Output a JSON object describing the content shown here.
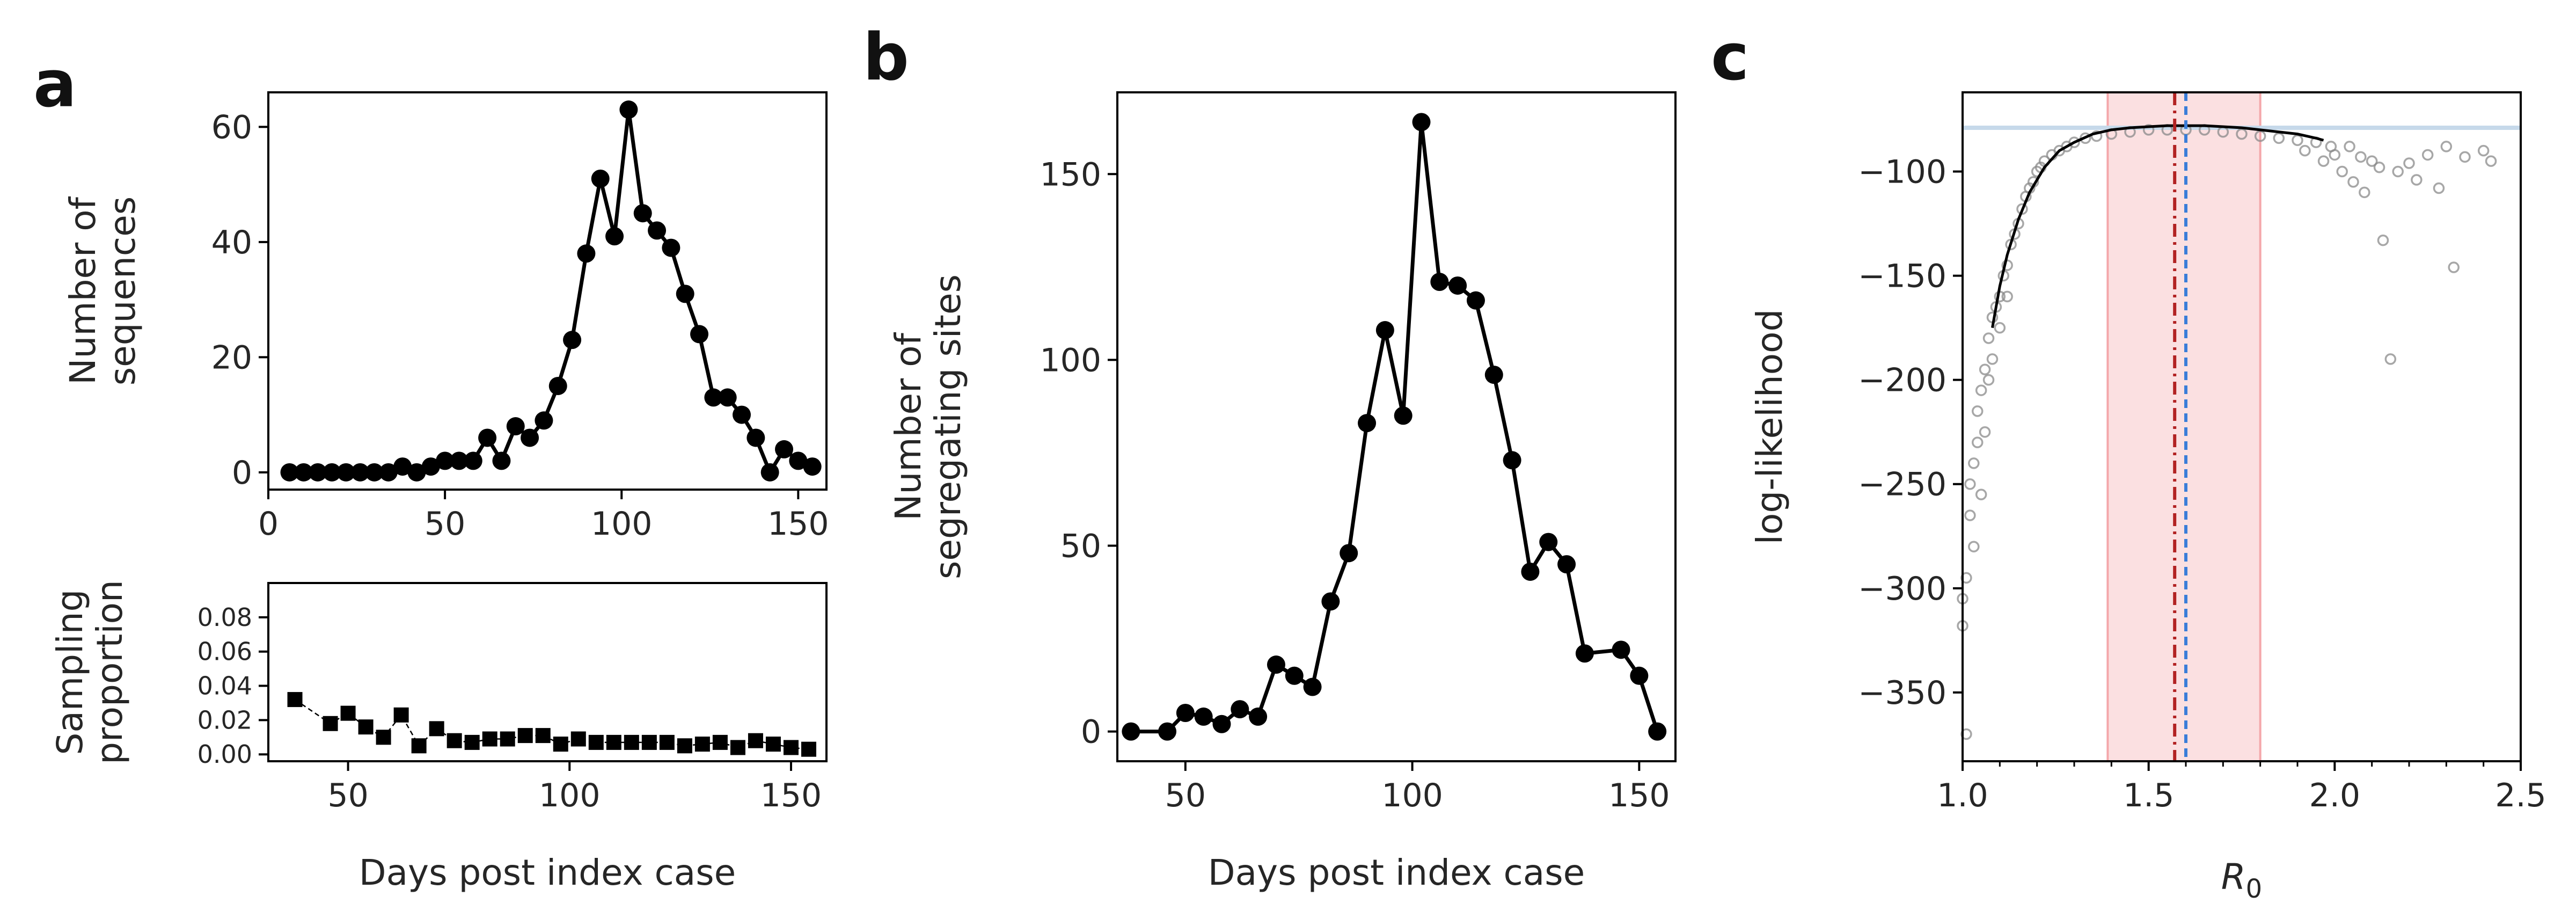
{
  "chart_data": [
    {
      "panel": "a",
      "type": "line",
      "ylabel_lines": [
        "Number of",
        "sequences"
      ],
      "xlabel": "",
      "xlim": [
        0,
        158
      ],
      "ylim": [
        -3,
        66
      ],
      "xticks": [
        0,
        50,
        100,
        150
      ],
      "yticks": [
        0,
        20,
        40,
        60
      ],
      "x": [
        6,
        10,
        14,
        18,
        22,
        26,
        30,
        34,
        38,
        42,
        46,
        50,
        54,
        58,
        62,
        66,
        70,
        74,
        78,
        82,
        86,
        90,
        94,
        98,
        102,
        106,
        110,
        114,
        118,
        122,
        126,
        130,
        134,
        138,
        142,
        146,
        150,
        154
      ],
      "y": [
        0,
        0,
        0,
        0,
        0,
        0,
        0,
        0,
        1,
        0,
        1,
        2,
        2,
        2,
        6,
        2,
        8,
        6,
        9,
        15,
        23,
        38,
        51,
        41,
        63,
        45,
        42,
        39,
        31,
        24,
        13,
        13,
        10,
        6,
        0,
        4,
        2,
        1
      ]
    },
    {
      "panel": "a-lower",
      "type": "line",
      "ylabel_lines": [
        "Sampling",
        "proportion"
      ],
      "xlabel": "Days post index case",
      "xlim": [
        32,
        158
      ],
      "ylim": [
        -0.004,
        0.1
      ],
      "xticks": [
        50,
        100,
        150
      ],
      "yticks": [
        0.0,
        0.02,
        0.04,
        0.06,
        0.08
      ],
      "ytick_labels": [
        "0.00",
        "0.02",
        "0.04",
        "0.06",
        "0.08"
      ],
      "x": [
        38,
        46,
        50,
        54,
        58,
        62,
        66,
        70,
        74,
        78,
        82,
        86,
        90,
        94,
        98,
        102,
        106,
        110,
        114,
        118,
        122,
        126,
        130,
        134,
        138,
        142,
        146,
        150,
        154
      ],
      "y": [
        0.032,
        0.018,
        0.024,
        0.016,
        0.01,
        0.023,
        0.005,
        0.015,
        0.008,
        0.007,
        0.009,
        0.009,
        0.011,
        0.011,
        0.006,
        0.009,
        0.007,
        0.007,
        0.007,
        0.007,
        0.007,
        0.005,
        0.006,
        0.007,
        0.004,
        0.008,
        0.006,
        0.004,
        0.003
      ]
    },
    {
      "panel": "b",
      "type": "line",
      "ylabel_lines": [
        "Number of",
        "segregating sites"
      ],
      "xlabel": "Days post index case",
      "xlim": [
        35,
        158
      ],
      "ylim": [
        -8,
        172
      ],
      "xticks": [
        50,
        100,
        150
      ],
      "yticks": [
        0,
        50,
        100,
        150
      ],
      "x": [
        38,
        46,
        50,
        54,
        58,
        62,
        66,
        70,
        74,
        78,
        82,
        86,
        90,
        94,
        98,
        102,
        106,
        110,
        114,
        118,
        122,
        126,
        130,
        134,
        138,
        146,
        150,
        154
      ],
      "y": [
        0,
        0,
        5,
        4,
        2,
        6,
        4,
        18,
        15,
        12,
        35,
        48,
        83,
        108,
        85,
        164,
        121,
        120,
        116,
        96,
        73,
        43,
        51,
        45,
        21,
        22,
        15,
        0
      ]
    },
    {
      "panel": "c",
      "type": "scatter",
      "ylabel": "log-likelihood",
      "xlabel": "R",
      "xlabel_sub": "0",
      "xlim": [
        1.0,
        2.5
      ],
      "ylim": [
        -383,
        -62
      ],
      "xticks": [
        1.0,
        1.5,
        2.0,
        2.5
      ],
      "xtick_labels": [
        "1.0",
        "1.5",
        "2.0",
        "2.5"
      ],
      "yticks": [
        -350,
        -300,
        -250,
        -200,
        -150,
        -100
      ],
      "ytick_labels": [
        "−350",
        "−300",
        "−250",
        "−200",
        "−150",
        "−100"
      ],
      "max_loglik": -79,
      "ci_band": [
        1.39,
        1.8
      ],
      "mle_estimate": 1.57,
      "true_value": 1.6,
      "smooth_curve": {
        "x": [
          1.08,
          1.1,
          1.12,
          1.15,
          1.18,
          1.22,
          1.26,
          1.3,
          1.35,
          1.4,
          1.45,
          1.5,
          1.55,
          1.6,
          1.65,
          1.7,
          1.75,
          1.8,
          1.85,
          1.9,
          1.95,
          1.97
        ],
        "y": [
          -175,
          -155,
          -140,
          -123,
          -110,
          -98,
          -90,
          -86,
          -82,
          -80,
          -79,
          -78.5,
          -78,
          -78,
          -78,
          -78.5,
          -79,
          -80,
          -81,
          -82,
          -84,
          -85
        ]
      },
      "points": [
        [
          1.0,
          -318
        ],
        [
          1.0,
          -305
        ],
        [
          1.01,
          -295
        ],
        [
          1.01,
          -370
        ],
        [
          1.02,
          -265
        ],
        [
          1.02,
          -250
        ],
        [
          1.03,
          -240
        ],
        [
          1.03,
          -280
        ],
        [
          1.04,
          -230
        ],
        [
          1.04,
          -215
        ],
        [
          1.05,
          -205
        ],
        [
          1.05,
          -255
        ],
        [
          1.06,
          -195
        ],
        [
          1.06,
          -225
        ],
        [
          1.07,
          -180
        ],
        [
          1.07,
          -200
        ],
        [
          1.08,
          -170
        ],
        [
          1.08,
          -190
        ],
        [
          1.09,
          -165
        ],
        [
          1.1,
          -160
        ],
        [
          1.1,
          -175
        ],
        [
          1.11,
          -150
        ],
        [
          1.12,
          -145
        ],
        [
          1.12,
          -160
        ],
        [
          1.13,
          -135
        ],
        [
          1.14,
          -130
        ],
        [
          1.15,
          -125
        ],
        [
          1.16,
          -118
        ],
        [
          1.17,
          -112
        ],
        [
          1.18,
          -108
        ],
        [
          1.19,
          -105
        ],
        [
          1.2,
          -100
        ],
        [
          1.21,
          -98
        ],
        [
          1.22,
          -95
        ],
        [
          1.24,
          -92
        ],
        [
          1.26,
          -90
        ],
        [
          1.28,
          -88
        ],
        [
          1.3,
          -86
        ],
        [
          1.33,
          -84
        ],
        [
          1.36,
          -83
        ],
        [
          1.4,
          -82
        ],
        [
          1.45,
          -81
        ],
        [
          1.5,
          -80
        ],
        [
          1.55,
          -80
        ],
        [
          1.6,
          -80
        ],
        [
          1.65,
          -80
        ],
        [
          1.7,
          -81
        ],
        [
          1.75,
          -82
        ],
        [
          1.8,
          -83
        ],
        [
          1.85,
          -84
        ],
        [
          1.9,
          -85
        ],
        [
          1.92,
          -90
        ],
        [
          1.95,
          -86
        ],
        [
          1.97,
          -95
        ],
        [
          1.99,
          -88
        ],
        [
          2.0,
          -92
        ],
        [
          2.02,
          -100
        ],
        [
          2.04,
          -88
        ],
        [
          2.05,
          -105
        ],
        [
          2.07,
          -93
        ],
        [
          2.08,
          -110
        ],
        [
          2.1,
          -95
        ],
        [
          2.12,
          -98
        ],
        [
          2.13,
          -133
        ],
        [
          2.15,
          -190
        ],
        [
          2.17,
          -100
        ],
        [
          2.2,
          -96
        ],
        [
          2.22,
          -104
        ],
        [
          2.25,
          -92
        ],
        [
          2.28,
          -108
        ],
        [
          2.3,
          -88
        ],
        [
          2.32,
          -146
        ],
        [
          2.35,
          -93
        ],
        [
          2.4,
          -90
        ],
        [
          2.42,
          -95
        ]
      ]
    }
  ],
  "panels": {
    "a": "a",
    "b": "b",
    "c": "c"
  },
  "colors": {
    "line": "#000000",
    "scatter": "#8a8a8a",
    "band": "#f4a7aa",
    "hline": "#c6d9ea",
    "mle": "#b22222",
    "truth": "#3a7dd8"
  }
}
